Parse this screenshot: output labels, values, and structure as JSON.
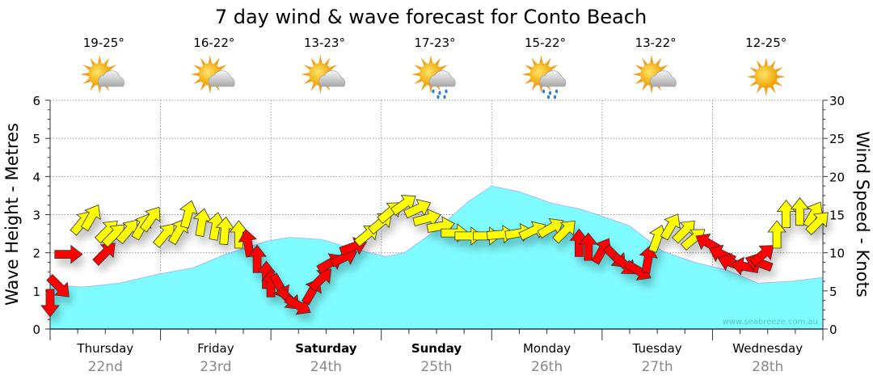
{
  "chart_data": {
    "type": "area",
    "title": "7 day wind & wave forecast for Conto Beach",
    "ylabel_left": "Wave Height - Metres",
    "ylabel_right": "Wind Speed - Knots",
    "ylim_left": [
      0,
      6
    ],
    "ylim_right": [
      0,
      30
    ],
    "yticks_left": [
      "0",
      "1",
      "2",
      "3",
      "4",
      "5",
      "6"
    ],
    "yticks_right": [
      "0",
      "5",
      "10",
      "15",
      "20",
      "25",
      "30"
    ],
    "x_hours_range": [
      0,
      168
    ],
    "grid": true,
    "watermark": "www.seabreeze.com.au",
    "days": [
      {
        "name": "Thursday",
        "date": "22nd",
        "bold": false,
        "temp": "19-25°",
        "weather": "partly-cloudy"
      },
      {
        "name": "Friday",
        "date": "23rd",
        "bold": false,
        "temp": "16-22°",
        "weather": "partly-cloudy"
      },
      {
        "name": "Saturday",
        "date": "24th",
        "bold": true,
        "temp": "13-23°",
        "weather": "partly-cloudy"
      },
      {
        "name": "Sunday",
        "date": "25th",
        "bold": true,
        "temp": "17-23°",
        "weather": "showers"
      },
      {
        "name": "Monday",
        "date": "26th",
        "bold": false,
        "temp": "15-22°",
        "weather": "showers"
      },
      {
        "name": "Tuesday",
        "date": "27th",
        "bold": false,
        "temp": "13-22°",
        "weather": "partly-cloudy"
      },
      {
        "name": "Wednesday",
        "date": "28th",
        "bold": false,
        "temp": "12-25°",
        "weather": "sunny"
      }
    ],
    "wave_series": {
      "name": "Wave Height (m)",
      "hours": [
        0,
        7,
        15,
        24,
        31,
        38,
        47,
        52,
        59,
        66,
        73,
        77,
        84,
        91,
        96,
        102,
        109,
        115,
        119,
        126,
        133,
        140,
        147,
        154,
        161,
        168
      ],
      "values": [
        1.15,
        1.1,
        1.2,
        1.45,
        1.6,
        1.95,
        2.3,
        2.4,
        2.35,
        2.1,
        1.9,
        2.0,
        2.6,
        3.35,
        3.75,
        3.6,
        3.3,
        3.15,
        3.0,
        2.7,
        2.05,
        1.75,
        1.55,
        1.2,
        1.25,
        1.35
      ]
    },
    "wind_series": {
      "name": "Wind Speed (knots)",
      "colors": {
        "offshore": "#ff0000",
        "onshore": "#ffff00"
      },
      "points": [
        {
          "h": 0,
          "kt": 3.4,
          "dir": 90,
          "off": true
        },
        {
          "h": 2,
          "kt": 5.5,
          "dir": 45,
          "off": true
        },
        {
          "h": 4,
          "kt": 9.8,
          "dir": 0,
          "off": true
        },
        {
          "h": 7,
          "kt": 14,
          "dir": -50,
          "off": false
        },
        {
          "h": 9,
          "kt": 14.7,
          "dir": -60,
          "off": false
        },
        {
          "h": 12,
          "kt": 10,
          "dir": -45,
          "off": true
        },
        {
          "h": 12.5,
          "kt": 12.9,
          "dir": -45,
          "off": false
        },
        {
          "h": 14,
          "kt": 12.4,
          "dir": -45,
          "off": false
        },
        {
          "h": 17,
          "kt": 12.9,
          "dir": -50,
          "off": false
        },
        {
          "h": 20,
          "kt": 13.5,
          "dir": -60,
          "off": false
        },
        {
          "h": 22,
          "kt": 14.5,
          "dir": -55,
          "off": false
        },
        {
          "h": 25,
          "kt": 12.4,
          "dir": -50,
          "off": false
        },
        {
          "h": 28,
          "kt": 12.9,
          "dir": -60,
          "off": false
        },
        {
          "h": 30,
          "kt": 15.1,
          "dir": -75,
          "off": false
        },
        {
          "h": 33,
          "kt": 14,
          "dir": -80,
          "off": false
        },
        {
          "h": 36,
          "kt": 13.5,
          "dir": -80,
          "off": false
        },
        {
          "h": 38,
          "kt": 12.9,
          "dir": -85,
          "off": false
        },
        {
          "h": 41,
          "kt": 12.4,
          "dir": -90,
          "off": false
        },
        {
          "h": 43,
          "kt": 11.3,
          "dir": -100,
          "off": true
        },
        {
          "h": 45,
          "kt": 9.2,
          "dir": -90,
          "off": true
        },
        {
          "h": 47,
          "kt": 7.1,
          "dir": -90,
          "off": true
        },
        {
          "h": 48,
          "kt": 6.0,
          "dir": -90,
          "off": true
        },
        {
          "h": 50,
          "kt": 5.5,
          "dir": 60,
          "off": true
        },
        {
          "h": 52,
          "kt": 3.9,
          "dir": 45,
          "off": true
        },
        {
          "h": 54,
          "kt": 3.1,
          "dir": 30,
          "off": true
        },
        {
          "h": 57,
          "kt": 5.0,
          "dir": -60,
          "off": true
        },
        {
          "h": 59,
          "kt": 6.6,
          "dir": -45,
          "off": true
        },
        {
          "h": 61,
          "kt": 8.7,
          "dir": -30,
          "off": true
        },
        {
          "h": 64,
          "kt": 9.4,
          "dir": -25,
          "off": true
        },
        {
          "h": 66,
          "kt": 10.8,
          "dir": -20,
          "off": true
        },
        {
          "h": 69,
          "kt": 12.4,
          "dir": -40,
          "off": false
        },
        {
          "h": 72,
          "kt": 14,
          "dir": -40,
          "off": false
        },
        {
          "h": 74,
          "kt": 15.4,
          "dir": -40,
          "off": false
        },
        {
          "h": 77,
          "kt": 16.4,
          "dir": -35,
          "off": false
        },
        {
          "h": 80,
          "kt": 15.8,
          "dir": -25,
          "off": false
        },
        {
          "h": 82,
          "kt": 14.5,
          "dir": -15,
          "off": false
        },
        {
          "h": 85,
          "kt": 13.5,
          "dir": -10,
          "off": false
        },
        {
          "h": 88,
          "kt": 12.6,
          "dir": 0,
          "off": false
        },
        {
          "h": 91,
          "kt": 12.2,
          "dir": 0,
          "off": false
        },
        {
          "h": 95,
          "kt": 12.2,
          "dir": 0,
          "off": false
        },
        {
          "h": 98,
          "kt": 12.4,
          "dir": -5,
          "off": false
        },
        {
          "h": 102,
          "kt": 12.6,
          "dir": -10,
          "off": false
        },
        {
          "h": 105,
          "kt": 12.9,
          "dir": -25,
          "off": false
        },
        {
          "h": 109,
          "kt": 13.3,
          "dir": -30,
          "off": false
        },
        {
          "h": 112,
          "kt": 12.9,
          "dir": -45,
          "off": false
        },
        {
          "h": 115,
          "kt": 11.3,
          "dir": -90,
          "off": true
        },
        {
          "h": 117,
          "kt": 10.8,
          "dir": -90,
          "off": true
        },
        {
          "h": 120,
          "kt": 10.3,
          "dir": -60,
          "off": true
        },
        {
          "h": 123,
          "kt": 9.4,
          "dir": 45,
          "off": true
        },
        {
          "h": 125,
          "kt": 8.4,
          "dir": 40,
          "off": true
        },
        {
          "h": 128,
          "kt": 7.6,
          "dir": 30,
          "off": true
        },
        {
          "h": 130,
          "kt": 9.2,
          "dir": -80,
          "off": true
        },
        {
          "h": 132,
          "kt": 11.9,
          "dir": -70,
          "off": false
        },
        {
          "h": 135,
          "kt": 13.5,
          "dir": -60,
          "off": false
        },
        {
          "h": 138,
          "kt": 12.9,
          "dir": -45,
          "off": false
        },
        {
          "h": 140,
          "kt": 11.9,
          "dir": -40,
          "off": false
        },
        {
          "h": 143,
          "kt": 11.3,
          "dir": -150,
          "off": true
        },
        {
          "h": 146,
          "kt": 9.8,
          "dir": -155,
          "off": true
        },
        {
          "h": 148,
          "kt": 8.7,
          "dir": -160,
          "off": true
        },
        {
          "h": 151,
          "kt": 8.2,
          "dir": -170,
          "off": true
        },
        {
          "h": 154,
          "kt": 8.7,
          "dir": -160,
          "off": true
        },
        {
          "h": 155,
          "kt": 9.8,
          "dir": -40,
          "off": true
        },
        {
          "h": 158,
          "kt": 12.4,
          "dir": -90,
          "off": false
        },
        {
          "h": 160,
          "kt": 15.1,
          "dir": -90,
          "off": false
        },
        {
          "h": 163,
          "kt": 15.4,
          "dir": -90,
          "off": false
        },
        {
          "h": 166,
          "kt": 15.1,
          "dir": -60,
          "off": false
        },
        {
          "h": 167,
          "kt": 14,
          "dir": -45,
          "off": false
        }
      ]
    }
  }
}
